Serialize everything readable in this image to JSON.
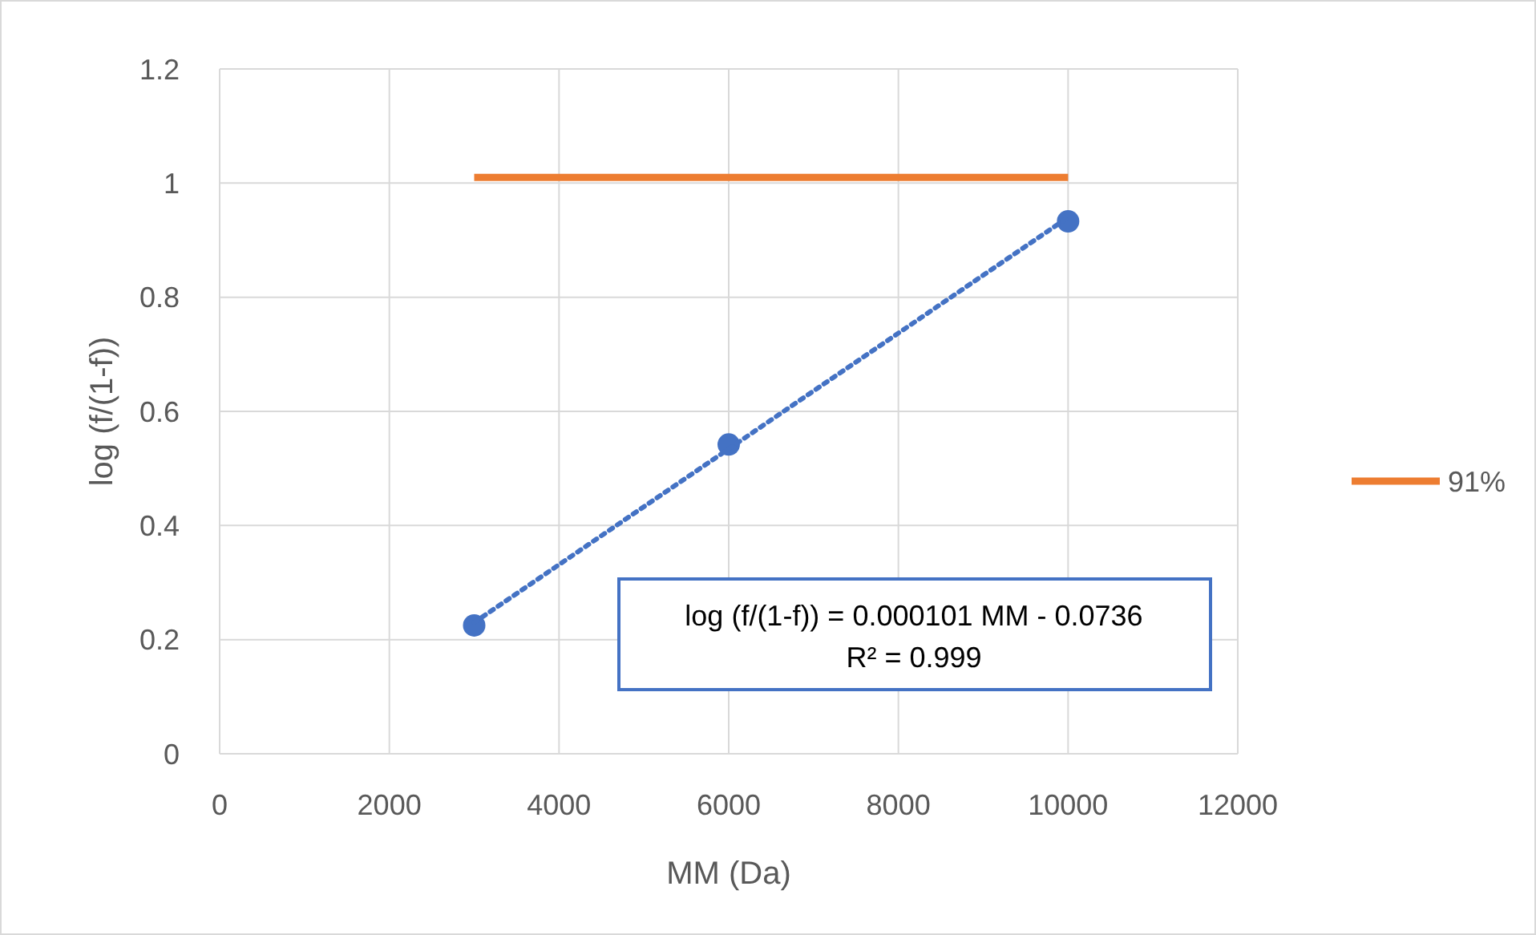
{
  "chart_data": {
    "type": "scatter",
    "xlabel": "MM (Da)",
    "ylabel": "log (f/(1-f))",
    "xlim": [
      0,
      12000
    ],
    "xticks": [
      0,
      2000,
      4000,
      6000,
      8000,
      10000,
      12000
    ],
    "ylim": [
      0,
      1.2
    ],
    "yticks": [
      0,
      {
        "value": 0.2,
        "label": "0.2"
      },
      {
        "value": 0.4,
        "label": "0.4"
      },
      {
        "value": 0.6,
        "label": "0.6"
      },
      {
        "value": 0.8,
        "label": "0.8"
      },
      1,
      {
        "value": 1.2,
        "label": "1.2"
      }
    ],
    "grid": true,
    "legend": "right",
    "series": [
      {
        "color": "#4472c4",
        "marker": "circle",
        "x": [
          3000,
          6000,
          10000
        ],
        "values": [
          0.225,
          0.542,
          0.933
        ]
      },
      {
        "type": "line",
        "color": "#4472c4",
        "line_style": "dotted",
        "marker": "none",
        "x": [
          3000,
          10000
        ],
        "values": [
          0.23,
          0.94
        ]
      },
      {
        "type": "line",
        "name": "91%",
        "color": "#ed7d31",
        "line_style": "solid",
        "marker": "none",
        "x": [
          3000,
          10000
        ],
        "values": [
          1.01,
          1.01
        ]
      }
    ],
    "annotations": [
      "log (f/(1-f)) = 0.000101 MM - 0.0736",
      "R² = 0.999"
    ]
  }
}
